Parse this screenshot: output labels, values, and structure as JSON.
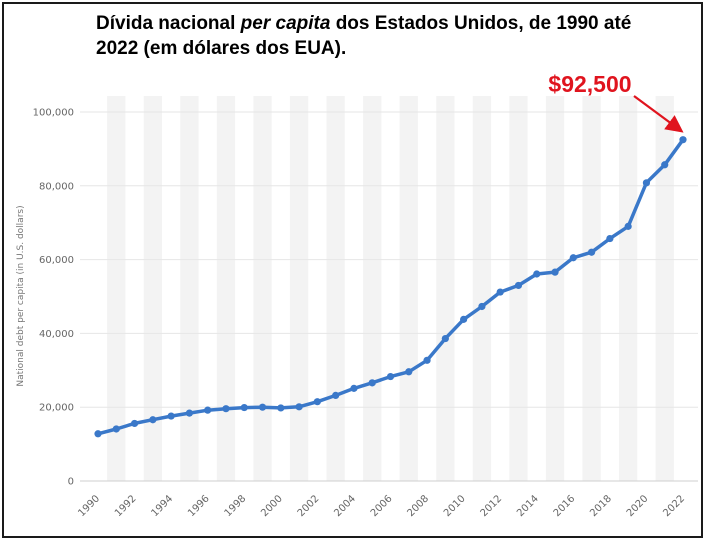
{
  "title": {
    "part1": "Dívida nacional ",
    "italic": "per capita",
    "part2": " dos Estados Unidos, de 1990 até 2022 (em dólares dos EUA)."
  },
  "chart_data": {
    "type": "line",
    "ylabel": "National debt per capita (in U.S. dollars)",
    "ylim": [
      0,
      100000
    ],
    "yticks": [
      0,
      20000,
      40000,
      60000,
      80000,
      100000
    ],
    "ytick_labels": [
      "0",
      "20,000",
      "40,000",
      "60,000",
      "80,000",
      "100,000"
    ],
    "xlim": [
      1990,
      2022
    ],
    "xticks": [
      1990,
      1992,
      1994,
      1996,
      1998,
      2000,
      2002,
      2004,
      2006,
      2008,
      2010,
      2012,
      2014,
      2016,
      2018,
      2020,
      2022
    ],
    "xtick_labels": [
      "1990",
      "1992",
      "1994",
      "1996",
      "1998",
      "2000",
      "2002",
      "2004",
      "2006",
      "2008",
      "2010",
      "2012",
      "2014",
      "2016",
      "2018",
      "2020",
      "2022"
    ],
    "x": [
      1990,
      1991,
      1992,
      1993,
      1994,
      1995,
      1996,
      1997,
      1998,
      1999,
      2000,
      2001,
      2002,
      2003,
      2004,
      2005,
      2006,
      2007,
      2008,
      2009,
      2010,
      2011,
      2012,
      2013,
      2014,
      2015,
      2016,
      2017,
      2018,
      2019,
      2020,
      2021,
      2022
    ],
    "values": [
      12800,
      14100,
      15600,
      16600,
      17600,
      18400,
      19200,
      19600,
      19900,
      20000,
      19800,
      20100,
      21500,
      23200,
      25100,
      26600,
      28300,
      29600,
      32700,
      38600,
      43800,
      47300,
      51200,
      53000,
      56100,
      56600,
      60500,
      62000,
      65700,
      69000,
      80800,
      85700,
      92500
    ],
    "annotation": "$92,500",
    "grid": "alternating vertical bands",
    "color": "#3a78c9",
    "annotation_color": "#e0141e"
  }
}
